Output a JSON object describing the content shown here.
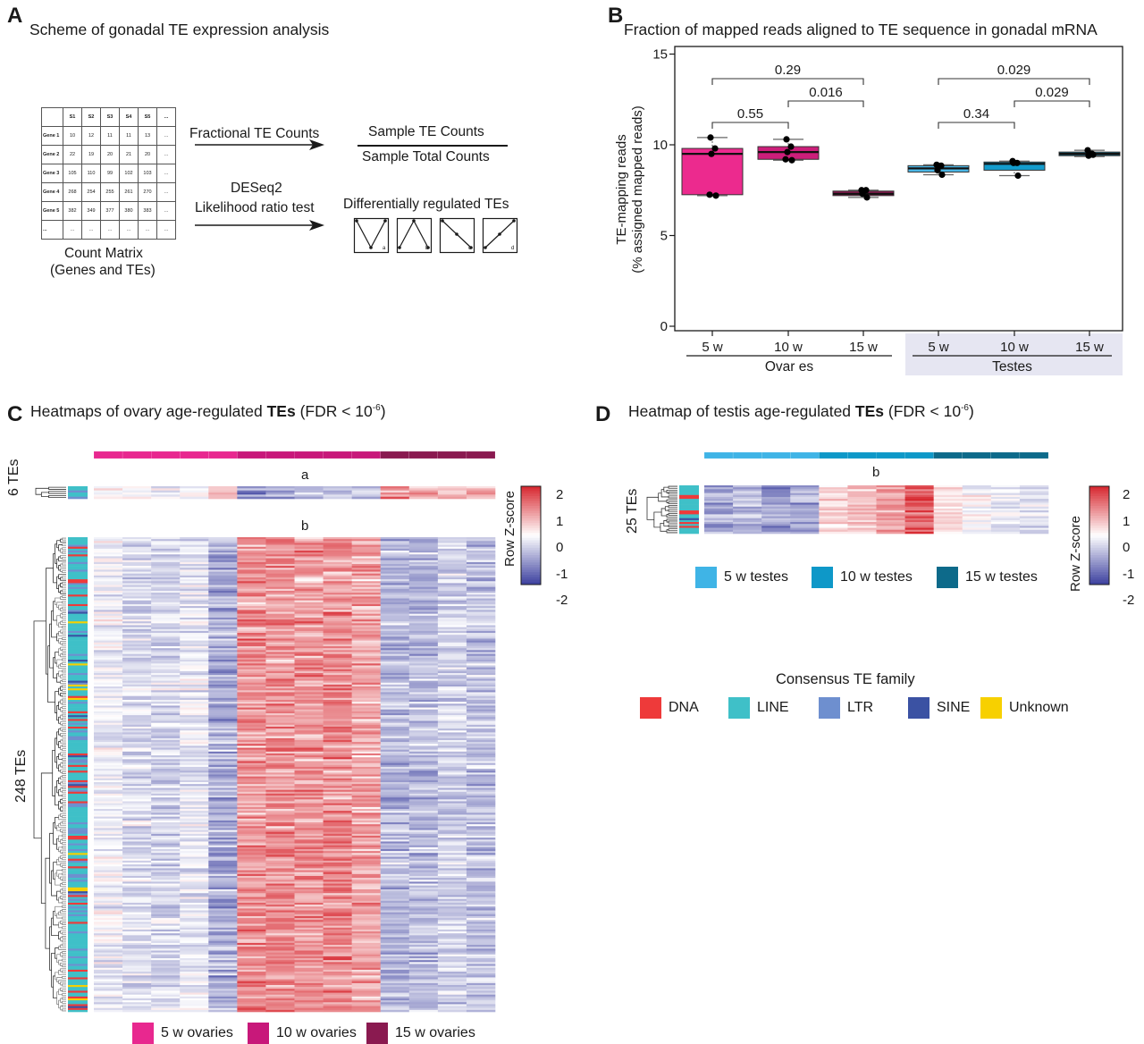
{
  "panels": {
    "A": {
      "letter": "A",
      "title": "Scheme of gonadal TE expression analysis",
      "matrix": {
        "header": [
          "",
          "S1",
          "S2",
          "S3",
          "S4",
          "S5",
          "..."
        ],
        "rows": [
          [
            "Gene 1",
            "10",
            "12",
            "11",
            "11",
            "13",
            "..."
          ],
          [
            "Gene 2",
            "22",
            "19",
            "20",
            "21",
            "20",
            "..."
          ],
          [
            "Gene 3",
            "105",
            "110",
            "99",
            "102",
            "103",
            "..."
          ],
          [
            "Gene 4",
            "268",
            "254",
            "255",
            "261",
            "270",
            "..."
          ],
          [
            "Gene 5",
            "382",
            "349",
            "377",
            "380",
            "383",
            "..."
          ],
          [
            "...",
            "...",
            "...",
            "...",
            "...",
            "...",
            "..."
          ]
        ],
        "caption_line1": "Count Matrix",
        "caption_line2": "(Genes and TEs)"
      },
      "arrow1_label": "Fractional TE Counts",
      "fraction_numerator": "Sample TE Counts",
      "fraction_denominator": "Sample Total Counts",
      "arrow2_label_line1": "DESeq2",
      "arrow2_label_line2": "Likelihood ratio test",
      "pattern_title": "Differentially regulated TEs",
      "patterns": [
        {
          "label": "a",
          "shape": [
            1,
            0,
            1
          ]
        },
        {
          "label": "b",
          "shape": [
            0,
            1,
            0
          ]
        },
        {
          "label": "c",
          "shape": [
            1,
            0.5,
            0
          ]
        },
        {
          "label": "d",
          "shape": [
            0,
            0.5,
            1
          ]
        }
      ]
    },
    "B": {
      "letter": "B",
      "title": "Fraction of mapped reads aligned to TE sequence in gonadal mRNA",
      "ylabel_line1": "TE-mapping reads",
      "ylabel_line2": "(% assigned mapped reads)",
      "group_labels": [
        "Ovar es",
        "Testes"
      ]
    },
    "C": {
      "letter": "C",
      "title_pre": "Heatmaps of ovary age-regulated ",
      "title_bold": "TEs",
      "title_post": " (FDR < 10",
      "title_sup": "-6",
      "title_end": ")",
      "cluster_a_label": "a",
      "cluster_b_label": "b",
      "cluster_a_count": "6 TEs",
      "cluster_b_count": "248 TEs",
      "legend": [
        {
          "label": "5 w ovaries",
          "color": "#e8288f"
        },
        {
          "label": "10 w ovaries",
          "color": "#c8187a"
        },
        {
          "label": "15 w ovaries",
          "color": "#8a1a50"
        }
      ]
    },
    "D": {
      "letter": "D",
      "title_pre": "Heatmap of testis age-regulated ",
      "title_bold": "TEs",
      "title_post": " (FDR < 10",
      "title_sup": "-6",
      "title_end": ")",
      "cluster_b_label": "b",
      "cluster_b_count": "25 TEs",
      "legend": [
        {
          "label": "5 w testes",
          "color": "#3fb4e6"
        },
        {
          "label": "10 w testes",
          "color": "#0e98c8"
        },
        {
          "label": "15 w testes",
          "color": "#0d6a8a"
        }
      ]
    },
    "colorscale": {
      "title": "Row Z-score",
      "ticks": [
        "2",
        "1",
        "0",
        "-1",
        "-2"
      ],
      "low": "#3b3f9e",
      "mid": "#ffffff",
      "high": "#d7262e"
    },
    "family_legend": {
      "title": "Consensus TE family",
      "items": [
        {
          "label": "DNA",
          "color": "#ee3a3a"
        },
        {
          "label": "LINE",
          "color": "#3fc0c8"
        },
        {
          "label": "LTR",
          "color": "#6e8fcf"
        },
        {
          "label": "SINE",
          "color": "#3b52a3"
        },
        {
          "label": "Unknown",
          "color": "#f7d000"
        }
      ]
    }
  },
  "chart_data": [
    {
      "type": "box",
      "title": "Fraction of mapped reads aligned to TE sequence in gonadal mRNA",
      "xlabel": "",
      "ylabel": "TE-mapping reads (% assigned mapped reads)",
      "ylim": [
        0,
        15
      ],
      "yticks": [
        0,
        5,
        10,
        15
      ],
      "categories": [
        "5 w",
        "10 w",
        "15 w",
        "5 w",
        "10 w",
        "15 w"
      ],
      "groups": [
        {
          "name": "Ovar es",
          "categories": [
            0,
            1,
            2
          ]
        },
        {
          "name": "Testes",
          "categories": [
            3,
            4,
            5
          ],
          "shaded": true
        }
      ],
      "series": [
        {
          "name": "5 w ovaries",
          "color": "#ec2a8e",
          "q1": 7.25,
          "median": 9.5,
          "q3": 9.8,
          "whisker_low": 7.2,
          "whisker_high": 10.4,
          "points": [
            10.4,
            9.8,
            9.5,
            7.2,
            7.25
          ]
        },
        {
          "name": "10 w ovaries",
          "color": "#cc1e7a",
          "q1": 9.2,
          "median": 9.6,
          "q3": 9.9,
          "whisker_low": 9.15,
          "whisker_high": 10.3,
          "points": [
            10.3,
            9.9,
            9.6,
            9.15,
            9.2
          ]
        },
        {
          "name": "15 w ovaries",
          "color": "#8a1a50",
          "q1": 7.2,
          "median": 7.3,
          "q3": 7.45,
          "whisker_low": 7.1,
          "whisker_high": 7.5,
          "points": [
            7.5,
            7.5,
            7.3,
            7.1
          ]
        },
        {
          "name": "5 w testes",
          "color": "#4cb8e8",
          "q1": 8.5,
          "median": 8.7,
          "q3": 8.85,
          "whisker_low": 8.35,
          "whisker_high": 8.9,
          "points": [
            8.9,
            8.85,
            8.6,
            8.35
          ]
        },
        {
          "name": "10 w testes",
          "color": "#139ccd",
          "q1": 8.6,
          "median": 8.95,
          "q3": 9.05,
          "whisker_low": 8.3,
          "whisker_high": 9.1,
          "points": [
            9.1,
            9.0,
            9.0,
            8.3
          ]
        },
        {
          "name": "15 w testes",
          "color": "#0d6a8a",
          "q1": 9.4,
          "median": 9.5,
          "q3": 9.6,
          "whisker_low": 9.35,
          "whisker_high": 9.7,
          "points": [
            9.7,
            9.5,
            9.4,
            9.45
          ]
        }
      ],
      "comparisons": [
        {
          "from": 0,
          "to": 1,
          "label": "0.55",
          "level": 1
        },
        {
          "from": 1,
          "to": 2,
          "label": "0.016",
          "level": 2
        },
        {
          "from": 0,
          "to": 2,
          "label": "0.29",
          "level": 3
        },
        {
          "from": 3,
          "to": 4,
          "label": "0.34",
          "level": 1
        },
        {
          "from": 4,
          "to": 5,
          "label": "0.029",
          "level": 2
        },
        {
          "from": 3,
          "to": 5,
          "label": "0.029",
          "level": 3
        }
      ]
    },
    {
      "type": "heatmap",
      "title": "Heatmaps of ovary age-regulated TEs (FDR < 10^-6)",
      "columns_per_group": [
        5,
        5,
        4
      ],
      "column_groups": [
        "5 w ovaries",
        "10 w ovaries",
        "15 w ovaries"
      ],
      "clusters": [
        {
          "name": "a",
          "n_rows": 6,
          "pattern_means": [
            0.1,
            0.1,
            -0.1,
            0.1,
            0.5,
            -1.3,
            -1.0,
            -0.6,
            -0.8,
            -0.6,
            1.1,
            0.9,
            0.7,
            0.8
          ]
        },
        {
          "name": "b",
          "n_rows": 248,
          "pattern_means": [
            -0.15,
            -0.4,
            -0.45,
            -0.25,
            -0.9,
            1.1,
            1.1,
            1.05,
            1.1,
            0.9,
            -0.8,
            -0.75,
            -0.5,
            -0.7
          ]
        }
      ],
      "color_range": [
        -2,
        2
      ],
      "family_composition": {
        "LINE": 0.62,
        "LTR": 0.18,
        "DNA": 0.12,
        "SINE": 0.03,
        "Unknown": 0.05
      }
    },
    {
      "type": "heatmap",
      "title": "Heatmap of testis age-regulated TEs (FDR < 10^-6)",
      "columns_per_group": [
        4,
        4,
        4
      ],
      "column_groups": [
        "5 w testes",
        "10 w testes",
        "15 w testes"
      ],
      "clusters": [
        {
          "name": "b",
          "n_rows": 25,
          "pattern_means": [
            -1.0,
            -0.8,
            -1.1,
            -1.0,
            0.4,
            0.7,
            1.1,
            1.7,
            0.4,
            0.0,
            -0.2,
            -0.3
          ]
        }
      ],
      "color_range": [
        -2,
        2
      ],
      "family_composition": {
        "LINE": 0.72,
        "DNA": 0.2,
        "SINE": 0.08
      }
    }
  ]
}
